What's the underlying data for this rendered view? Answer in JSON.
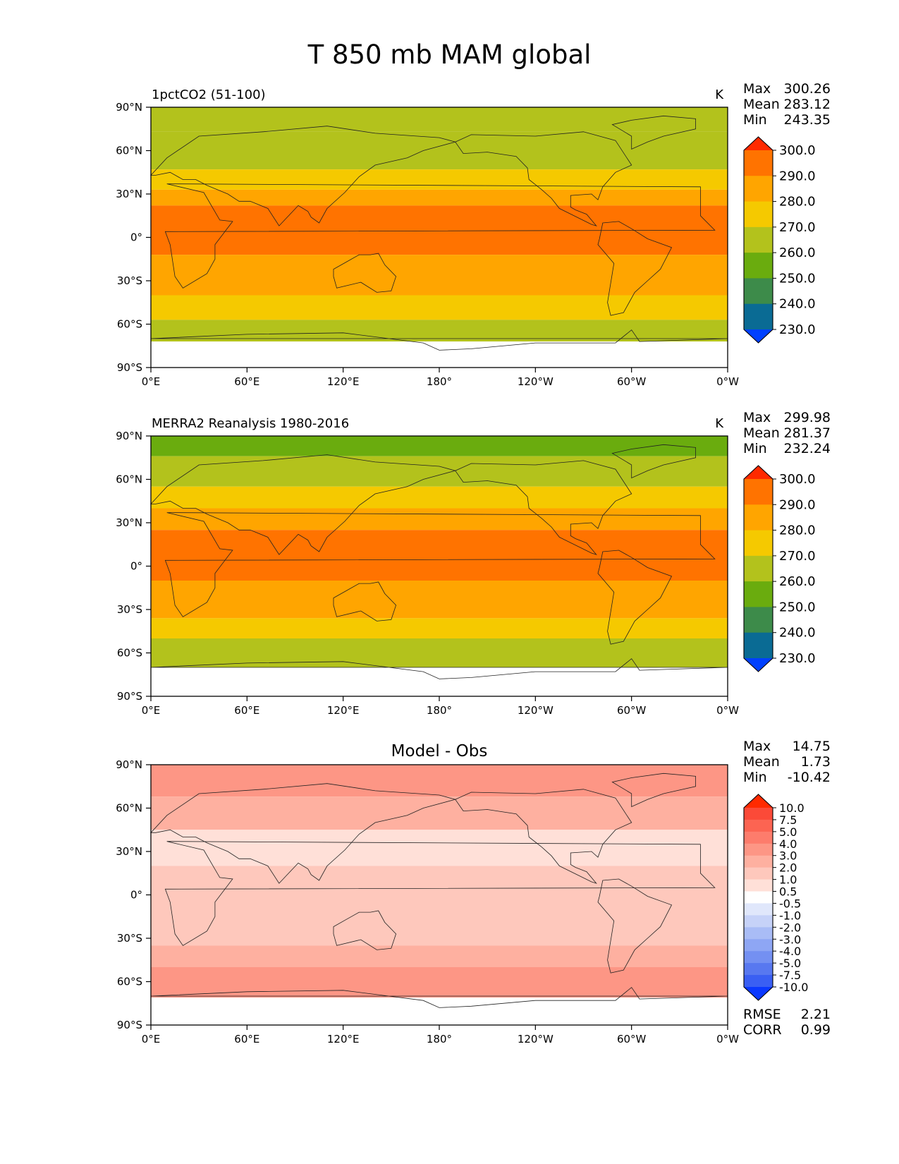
{
  "figure_title": "T 850 mb MAM global",
  "chart_data": [
    {
      "type": "heatmap",
      "id": "model",
      "title": "1pctCO2 (51-100)",
      "center_title": "",
      "units": "K",
      "stats": {
        "max_label": "Max",
        "max": "300.26",
        "mean_label": "Mean",
        "mean": "283.12",
        "min_label": "Min",
        "min": "243.35"
      },
      "x_ticks": [
        "0°E",
        "60°E",
        "120°E",
        "180°",
        "120°W",
        "60°W",
        "0°W"
      ],
      "y_ticks": [
        "90°N",
        "60°N",
        "30°N",
        "0°",
        "30°S",
        "60°S",
        "90°S"
      ],
      "x_range": [
        0,
        360
      ],
      "y_range": [
        -90,
        90
      ],
      "colorbar": {
        "levels": [
          "300.0",
          "290.0",
          "280.0",
          "270.0",
          "260.0",
          "250.0",
          "240.0",
          "230.0"
        ],
        "colors": [
          "#ff2a00",
          "#ff7300",
          "#ffa500",
          "#f5c900",
          "#b3c21c",
          "#6aac0e",
          "#3d8b4a",
          "#0a6b94",
          "#0040ff"
        ]
      },
      "bands": [
        {
          "lat_top": 90,
          "lat_bottom": 73,
          "color": "#b3c21c"
        },
        {
          "lat_top": 73,
          "lat_bottom": 47,
          "color": "#b3c21c"
        },
        {
          "lat_top": 47,
          "lat_bottom": 33,
          "color": "#f5c900"
        },
        {
          "lat_top": 33,
          "lat_bottom": 22,
          "color": "#ffa500"
        },
        {
          "lat_top": 22,
          "lat_bottom": -12,
          "color": "#ff7300"
        },
        {
          "lat_top": -12,
          "lat_bottom": -40,
          "color": "#ffa500"
        },
        {
          "lat_top": -40,
          "lat_bottom": -57,
          "color": "#f5c900"
        },
        {
          "lat_top": -57,
          "lat_bottom": -72,
          "color": "#b3c21c"
        },
        {
          "lat_top": -72,
          "lat_bottom": -90,
          "color": "#ffffff"
        }
      ]
    },
    {
      "type": "heatmap",
      "id": "obs",
      "title": "MERRA2 Reanalysis 1980-2016",
      "center_title": "",
      "units": "K",
      "stats": {
        "max_label": "Max",
        "max": "299.98",
        "mean_label": "Mean",
        "mean": "281.37",
        "min_label": "Min",
        "min": "232.24"
      },
      "x_ticks": [
        "0°E",
        "60°E",
        "120°E",
        "180°",
        "120°W",
        "60°W",
        "0°W"
      ],
      "y_ticks": [
        "90°N",
        "60°N",
        "30°N",
        "0°",
        "30°S",
        "60°S",
        "90°S"
      ],
      "x_range": [
        0,
        360
      ],
      "y_range": [
        -90,
        90
      ],
      "colorbar": {
        "levels": [
          "300.0",
          "290.0",
          "280.0",
          "270.0",
          "260.0",
          "250.0",
          "240.0",
          "230.0"
        ],
        "colors": [
          "#ff2a00",
          "#ff7300",
          "#ffa500",
          "#f5c900",
          "#b3c21c",
          "#6aac0e",
          "#3d8b4a",
          "#0a6b94",
          "#0040ff"
        ]
      },
      "bands": [
        {
          "lat_top": 90,
          "lat_bottom": 76,
          "color": "#6aac0e"
        },
        {
          "lat_top": 76,
          "lat_bottom": 55,
          "color": "#b3c21c"
        },
        {
          "lat_top": 55,
          "lat_bottom": 40,
          "color": "#f5c900"
        },
        {
          "lat_top": 40,
          "lat_bottom": 25,
          "color": "#ffa500"
        },
        {
          "lat_top": 25,
          "lat_bottom": -10,
          "color": "#ff7300"
        },
        {
          "lat_top": -10,
          "lat_bottom": -36,
          "color": "#ffa500"
        },
        {
          "lat_top": -36,
          "lat_bottom": -50,
          "color": "#f5c900"
        },
        {
          "lat_top": -50,
          "lat_bottom": -70,
          "color": "#b3c21c"
        },
        {
          "lat_top": -70,
          "lat_bottom": -90,
          "color": "#ffffff"
        }
      ]
    },
    {
      "type": "heatmap",
      "id": "diff",
      "title": "",
      "center_title": "Model - Obs",
      "units": "",
      "stats": {
        "max_label": "Max",
        "max": "14.75",
        "mean_label": "Mean",
        "mean": "1.73",
        "min_label": "Min",
        "min": "-10.42"
      },
      "metrics": {
        "rmse_label": "RMSE",
        "rmse": "2.21",
        "corr_label": "CORR",
        "corr": "0.99"
      },
      "x_ticks": [
        "0°E",
        "60°E",
        "120°E",
        "180°",
        "120°W",
        "60°W",
        "0°W"
      ],
      "y_ticks": [
        "90°N",
        "60°N",
        "30°N",
        "0°",
        "30°S",
        "60°S",
        "90°S"
      ],
      "x_range": [
        0,
        360
      ],
      "y_range": [
        -90,
        90
      ],
      "colorbar": {
        "levels": [
          "10.0",
          "7.5",
          "5.0",
          "4.0",
          "3.0",
          "2.0",
          "1.0",
          "0.5",
          "-0.5",
          "-1.0",
          "-2.0",
          "-3.0",
          "-4.0",
          "-5.0",
          "-7.5",
          "-10.0"
        ],
        "colors": [
          "#ff2a00",
          "#fb4a38",
          "#fc6452",
          "#fd7c6c",
          "#fd9685",
          "#feb0a0",
          "#fec8bc",
          "#ffe0d8",
          "#ffffff",
          "#e0e7fb",
          "#c6d2f8",
          "#a9bcf6",
          "#8ea6f4",
          "#7490f2",
          "#5878f0",
          "#3a5ff3",
          "#0a38ff"
        ]
      },
      "bands": [
        {
          "lat_top": 90,
          "lat_bottom": 68,
          "color": "#fd9685"
        },
        {
          "lat_top": 68,
          "lat_bottom": 45,
          "color": "#feb0a0"
        },
        {
          "lat_top": 45,
          "lat_bottom": 20,
          "color": "#ffe0d8"
        },
        {
          "lat_top": 20,
          "lat_bottom": -35,
          "color": "#fec8bc"
        },
        {
          "lat_top": -35,
          "lat_bottom": -50,
          "color": "#feb0a0"
        },
        {
          "lat_top": -50,
          "lat_bottom": -71,
          "color": "#fd9685"
        },
        {
          "lat_top": -71,
          "lat_bottom": -90,
          "color": "#ffffff"
        }
      ]
    }
  ]
}
